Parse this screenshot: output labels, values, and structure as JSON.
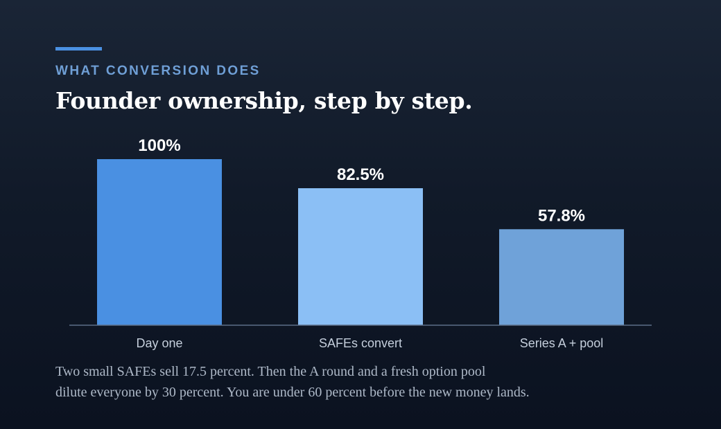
{
  "header": {
    "eyebrow": "WHAT CONVERSION DOES",
    "title": "Founder ownership, step by step."
  },
  "chart_data": {
    "type": "bar",
    "categories": [
      "Day one",
      "SAFEs convert",
      "Series A + pool"
    ],
    "values": [
      100,
      82.5,
      57.8
    ],
    "value_labels": [
      "100%",
      "82.5%",
      "57.8%"
    ],
    "colors": [
      "#4a90e2",
      "#8bbff5",
      "#6fa2d9"
    ],
    "ylim": [
      0,
      100
    ],
    "grid": false,
    "legend": "none",
    "title": "Founder ownership, step by step.",
    "xlabel": "",
    "ylabel": ""
  },
  "caption": {
    "line1": "Two small SAFEs sell 17.5 percent. Then the A round and a fresh option pool",
    "line2": "dilute everyone by 30 percent. You are under 60 percent before the new money lands."
  },
  "colors": {
    "accent": "#4a90e2",
    "eyebrow": "#6f9fd6",
    "axis": "#5d6f88"
  }
}
